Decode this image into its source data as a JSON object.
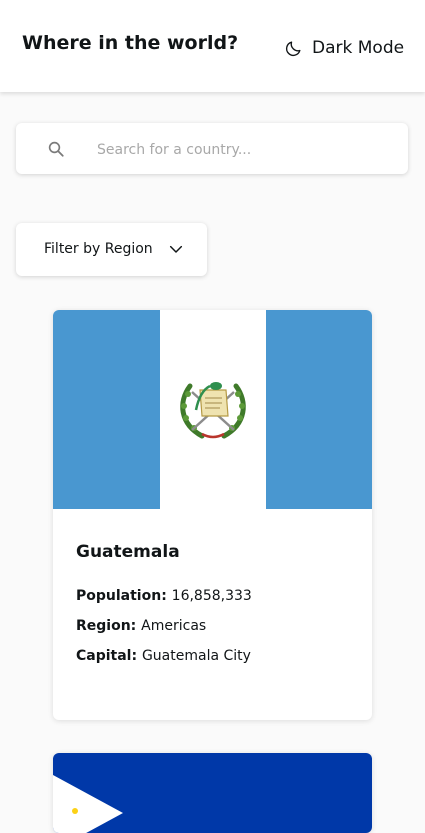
{
  "header": {
    "title": "Where in the world?",
    "dark_mode_label": "Dark Mode",
    "dark_mode_icon": "moon-icon"
  },
  "search": {
    "placeholder": "Search for a country...",
    "value": "",
    "icon": "search-icon"
  },
  "filter": {
    "label": "Filter by Region",
    "icon": "chevron-down-icon"
  },
  "countries": [
    {
      "name": "Guatemala",
      "population_label": "Population:",
      "population": "16,858,333",
      "region_label": "Region:",
      "region": "Americas",
      "capital_label": "Capital:",
      "capital": "Guatemala City",
      "flag_colors": [
        "#4997d0",
        "#ffffff",
        "#4997d0"
      ]
    },
    {
      "flag_colors": [
        "#0038a8",
        "#ffffff"
      ]
    }
  ],
  "colors": {
    "background": "#fafafa",
    "element": "#ffffff",
    "text": "#111517",
    "placeholder": "#a8a8a8"
  }
}
